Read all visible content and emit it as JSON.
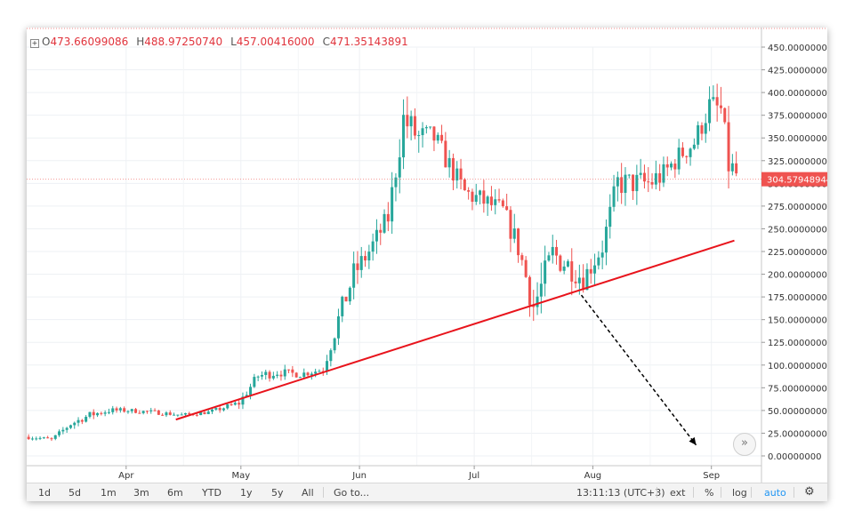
{
  "legend": {
    "open_label": "O",
    "open_value": "473.66099086",
    "high_label": "H",
    "high_value": "488.97250740",
    "low_label": "L",
    "low_value": "457.00416000",
    "close_label": "C",
    "close_value": "471.35143891"
  },
  "price_tag": "304.57948944",
  "toolbar": {
    "ranges": [
      "1d",
      "5d",
      "1m",
      "3m",
      "6m",
      "YTD",
      "1y",
      "5y",
      "All"
    ],
    "goto": "Go to...",
    "time": "13:11:13 (UTC+3)",
    "ext": "ext",
    "percent": "%",
    "log": "log",
    "auto": "auto",
    "settings_icon": "gear-icon"
  },
  "scroll_icon": "double-chevron-right-icon",
  "colors": {
    "up": "#26a69a",
    "down": "#ef5350",
    "trendline": "#e8141c",
    "arrow": "#000000",
    "price_tag_bg": "#ef5350"
  },
  "chart_data": {
    "type": "candlestick",
    "title": "",
    "y_ticks": [
      "450.00000000",
      "425.00000000",
      "400.00000000",
      "375.00000000",
      "350.00000000",
      "325.00000000",
      "300.00000000",
      "275.00000000",
      "250.00000000",
      "225.00000000",
      "200.00000000",
      "175.00000000",
      "150.00000000",
      "125.00000000",
      "100.00000000",
      "75.00000000",
      "50.00000000",
      "25.00000000",
      "0.00000000"
    ],
    "ylim": [
      0,
      450
    ],
    "x_ticks": [
      "Apr",
      "May",
      "Jun",
      "Jul",
      "Aug",
      "Sep"
    ],
    "x_start": "2017-03-06",
    "x_tick_dates": [
      "2017-04-01",
      "2017-05-01",
      "2017-06-01",
      "2017-07-01",
      "2017-08-01",
      "2017-09-01"
    ],
    "last_price": 304.58,
    "trendline": {
      "start": [
        "2017-04-14",
        40
      ],
      "end": [
        "2017-09-07",
        237
      ]
    },
    "projection_arrow": {
      "start": [
        "2017-07-29",
        177
      ],
      "end": [
        "2017-08-28",
        12
      ]
    },
    "anchors": [
      [
        "2017-03-06",
        21,
        5
      ],
      [
        "2017-03-12",
        18,
        4
      ],
      [
        "2017-03-17",
        35,
        7
      ],
      [
        "2017-03-22",
        45,
        8
      ],
      [
        "2017-03-27",
        50,
        7
      ],
      [
        "2017-04-01",
        50,
        5
      ],
      [
        "2017-04-08",
        48,
        5
      ],
      [
        "2017-04-15",
        45,
        4
      ],
      [
        "2017-04-22",
        48,
        4
      ],
      [
        "2017-04-30",
        58,
        8
      ],
      [
        "2017-05-05",
        88,
        12
      ],
      [
        "2017-05-10",
        92,
        10
      ],
      [
        "2017-05-16",
        90,
        8
      ],
      [
        "2017-05-22",
        95,
        8
      ],
      [
        "2017-05-26",
        150,
        25
      ],
      [
        "2017-05-30",
        200,
        28
      ],
      [
        "2017-06-03",
        225,
        22
      ],
      [
        "2017-06-08",
        262,
        25
      ],
      [
        "2017-06-12",
        370,
        40
      ],
      [
        "2017-06-16",
        350,
        35
      ],
      [
        "2017-06-20",
        350,
        28
      ],
      [
        "2017-06-24",
        320,
        25
      ],
      [
        "2017-06-28",
        290,
        25
      ],
      [
        "2017-07-03",
        280,
        25
      ],
      [
        "2017-07-08",
        270,
        22
      ],
      [
        "2017-07-12",
        230,
        30
      ],
      [
        "2017-07-16",
        165,
        35
      ],
      [
        "2017-07-18",
        185,
        40
      ],
      [
        "2017-07-21",
        222,
        35
      ],
      [
        "2017-07-25",
        210,
        30
      ],
      [
        "2017-07-29",
        195,
        25
      ],
      [
        "2017-08-03",
        230,
        25
      ],
      [
        "2017-08-07",
        300,
        32
      ],
      [
        "2017-08-11",
        300,
        28
      ],
      [
        "2017-08-15",
        300,
        35
      ],
      [
        "2017-08-19",
        310,
        25
      ],
      [
        "2017-08-23",
        330,
        25
      ],
      [
        "2017-08-27",
        345,
        25
      ],
      [
        "2017-08-31",
        385,
        30
      ],
      [
        "2017-09-03",
        380,
        35
      ],
      [
        "2017-09-05",
        320,
        35
      ],
      [
        "2017-09-07",
        310,
        28
      ]
    ]
  }
}
